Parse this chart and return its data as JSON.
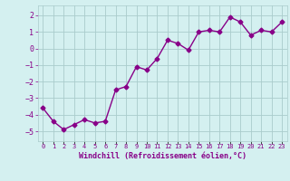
{
  "x": [
    0,
    1,
    2,
    3,
    4,
    5,
    6,
    7,
    8,
    9,
    10,
    11,
    12,
    13,
    14,
    15,
    16,
    17,
    18,
    19,
    20,
    21,
    22,
    23
  ],
  "y": [
    -3.6,
    -4.4,
    -4.9,
    -4.6,
    -4.3,
    -4.5,
    -4.4,
    -2.5,
    -2.3,
    -1.1,
    -1.3,
    -0.6,
    0.5,
    0.3,
    -0.1,
    1.0,
    1.1,
    1.0,
    1.9,
    1.6,
    0.8,
    1.1,
    1.0,
    1.6
  ],
  "line_color": "#880088",
  "marker": "D",
  "marker_size": 2.5,
  "bg_color": "#d4f0f0",
  "grid_color": "#aacccc",
  "xlabel": "Windchill (Refroidissement éolien,°C)",
  "tick_color": "#880088",
  "ylabel_ticks": [
    -5,
    -4,
    -3,
    -2,
    -1,
    0,
    1,
    2
  ],
  "xtick_labels": [
    "0",
    "1",
    "2",
    "3",
    "4",
    "5",
    "6",
    "7",
    "8",
    "9",
    "10",
    "11",
    "12",
    "13",
    "14",
    "15",
    "16",
    "17",
    "18",
    "19",
    "20",
    "21",
    "22",
    "23"
  ],
  "xlim": [
    -0.5,
    23.5
  ],
  "ylim": [
    -5.6,
    2.6
  ],
  "line_width": 1.0
}
